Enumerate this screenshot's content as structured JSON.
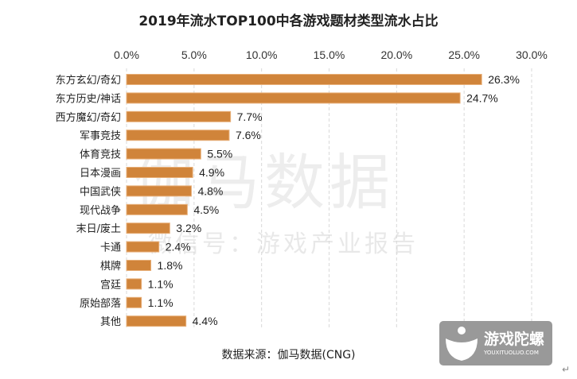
{
  "chart_data": {
    "type": "bar",
    "orientation": "horizontal",
    "title": "2019年流水TOP100中各游戏题材类型流水占比",
    "categories": [
      "东方玄幻/奇幻",
      "东方历史/神话",
      "西方魔幻/奇幻",
      "军事竞技",
      "体育竞技",
      "日本漫画",
      "中国武侠",
      "现代战争",
      "末日/废土",
      "卡通",
      "棋牌",
      "宫廷",
      "原始部落",
      "其他"
    ],
    "values": [
      26.3,
      24.7,
      7.7,
      7.6,
      5.5,
      4.9,
      4.8,
      4.5,
      3.2,
      2.4,
      1.8,
      1.1,
      1.1,
      4.4
    ],
    "value_labels": [
      "26.3%",
      "24.7%",
      "7.7%",
      "7.6%",
      "5.5%",
      "4.9%",
      "4.8%",
      "4.5%",
      "3.2%",
      "2.4%",
      "1.8%",
      "1.1%",
      "1.1%",
      "4.4%"
    ],
    "xlim": [
      0,
      30
    ],
    "xticks": [
      0,
      5,
      10,
      15,
      20,
      25,
      30
    ],
    "xtick_labels": [
      "0.0%",
      "5.0%",
      "10.0%",
      "15.0%",
      "20.0%",
      "25.0%",
      "30.0%"
    ],
    "xaxis_position": "top",
    "grid": "vertical dashed",
    "bar_color": "#D0843A"
  },
  "source": "数据来源：伽马数据(CNG)",
  "watermark": {
    "main": "伽马数据",
    "sub": "微信号：游戏产业报告"
  },
  "logo": {
    "cn": "游戏陀螺",
    "en": "YOUXITUOLUO.COM"
  }
}
